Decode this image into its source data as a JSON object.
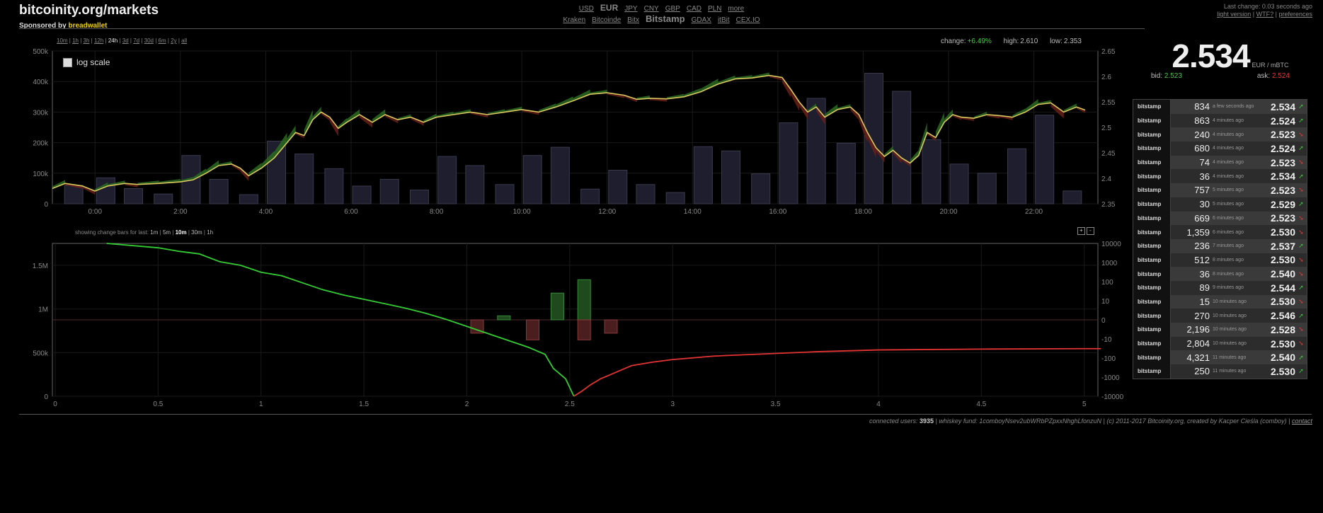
{
  "header": {
    "site_title": "bitcoinity.org/markets",
    "sponsor_prefix": "Sponsored by",
    "sponsor_link": "breadwallet"
  },
  "currencies": {
    "items": [
      "USD",
      "EUR",
      "JPY",
      "CNY",
      "GBP",
      "CAD",
      "PLN",
      "more"
    ],
    "selected": "EUR"
  },
  "exchanges": {
    "items": [
      "Kraken",
      "Bitcoinde",
      "Bitx",
      "Bitstamp",
      "GDAX",
      "itBit",
      "CEX.IO"
    ],
    "selected": "Bitstamp"
  },
  "topright": {
    "last_change": "Last change: 0.03 seconds ago",
    "light_version": "light version",
    "wtf": "WTF?",
    "preferences": "preferences",
    "sep": " | "
  },
  "ranges": {
    "items": [
      "10m",
      "1h",
      "3h",
      "12h",
      "24h",
      "3d",
      "7d",
      "30d",
      "6m",
      "2y",
      "all"
    ],
    "selected": "24h"
  },
  "stats": {
    "change_label": "change:",
    "change_value": "+6.49%",
    "high_label": "high:",
    "high_value": "2.610",
    "low_label": "low:",
    "low_value": "2.353"
  },
  "price": {
    "value": "2.534",
    "unit": "EUR / mBTC",
    "bid_label": "bid:",
    "bid_value": "2.523",
    "ask_label": "ask:",
    "ask_value": "2.524"
  },
  "log_scale_label": "log scale",
  "trades": [
    {
      "exchange": "bitstamp",
      "amount": "834",
      "ago": "a few seconds ago",
      "price": "2.534",
      "dir": "up"
    },
    {
      "exchange": "bitstamp",
      "amount": "863",
      "ago": "4 minutes ago",
      "price": "2.524",
      "dir": "up"
    },
    {
      "exchange": "bitstamp",
      "amount": "240",
      "ago": "4 minutes ago",
      "price": "2.523",
      "dir": "dn"
    },
    {
      "exchange": "bitstamp",
      "amount": "680",
      "ago": "4 minutes ago",
      "price": "2.524",
      "dir": "up"
    },
    {
      "exchange": "bitstamp",
      "amount": "74",
      "ago": "4 minutes ago",
      "price": "2.523",
      "dir": "dn"
    },
    {
      "exchange": "bitstamp",
      "amount": "36",
      "ago": "4 minutes ago",
      "price": "2.534",
      "dir": "up"
    },
    {
      "exchange": "bitstamp",
      "amount": "757",
      "ago": "5 minutes ago",
      "price": "2.523",
      "dir": "dn"
    },
    {
      "exchange": "bitstamp",
      "amount": "30",
      "ago": "5 minutes ago",
      "price": "2.529",
      "dir": "up"
    },
    {
      "exchange": "bitstamp",
      "amount": "669",
      "ago": "6 minutes ago",
      "price": "2.523",
      "dir": "dn"
    },
    {
      "exchange": "bitstamp",
      "amount": "1,359",
      "ago": "6 minutes ago",
      "price": "2.530",
      "dir": "dn"
    },
    {
      "exchange": "bitstamp",
      "amount": "236",
      "ago": "7 minutes ago",
      "price": "2.537",
      "dir": "up"
    },
    {
      "exchange": "bitstamp",
      "amount": "512",
      "ago": "8 minutes ago",
      "price": "2.530",
      "dir": "dn"
    },
    {
      "exchange": "bitstamp",
      "amount": "36",
      "ago": "8 minutes ago",
      "price": "2.540",
      "dir": "dn"
    },
    {
      "exchange": "bitstamp",
      "amount": "89",
      "ago": "9 minutes ago",
      "price": "2.544",
      "dir": "up"
    },
    {
      "exchange": "bitstamp",
      "amount": "15",
      "ago": "10 minutes ago",
      "price": "2.530",
      "dir": "dn"
    },
    {
      "exchange": "bitstamp",
      "amount": "270",
      "ago": "10 minutes ago",
      "price": "2.546",
      "dir": "up"
    },
    {
      "exchange": "bitstamp",
      "amount": "2,196",
      "ago": "10 minutes ago",
      "price": "2.528",
      "dir": "dn"
    },
    {
      "exchange": "bitstamp",
      "amount": "2,804",
      "ago": "10 minutes ago",
      "price": "2.530",
      "dir": "dn"
    },
    {
      "exchange": "bitstamp",
      "amount": "4,321",
      "ago": "11 minutes ago",
      "price": "2.540",
      "dir": "up"
    },
    {
      "exchange": "bitstamp",
      "amount": "250",
      "ago": "11 minutes ago",
      "price": "2.530",
      "dir": "up"
    }
  ],
  "change_bars": {
    "label": "showing change bars for last:",
    "items": [
      "1m",
      "5m",
      "10m",
      "30m",
      "1h"
    ],
    "selected": "10m"
  },
  "zoom": {
    "plus": "+",
    "minus": "-"
  },
  "footer": {
    "users_label": "connected users:",
    "users_value": "3935",
    "whiskey": "| whiskey fund: 1comboyNsev2ubWRbPZpxxNhghLfonzuN | (c) 2011-2017 Bitcoinity.org, created by Kacper Cieśla (comboy) |",
    "contact": "contact"
  },
  "colors": {
    "green": "#33cc33",
    "red": "#e33333",
    "price_line": "#d8c860",
    "bars": "#1e1e2e",
    "up_fill": "#2a6a20",
    "down_fill": "#6a1e18"
  },
  "chart_data": [
    {
      "type": "line",
      "x_tick_labels": [
        "0:00",
        "2:00",
        "4:00",
        "6:00",
        "8:00",
        "10:00",
        "12:00",
        "14:00",
        "16:00",
        "18:00",
        "20:00",
        "22:00"
      ],
      "volume_tick_labels": [
        "0",
        "100k",
        "200k",
        "300k",
        "400k",
        "500k"
      ],
      "price_tick_labels": [
        "2.35",
        "2.4",
        "2.45",
        "2.5",
        "2.55",
        "2.6",
        "2.65"
      ],
      "volume_ylim": [
        0,
        500000
      ],
      "price_ylim": [
        2.35,
        2.65
      ],
      "hours_range": [
        -1,
        23.5
      ],
      "volume": [
        {
          "h": -0.5,
          "v": 60000
        },
        {
          "h": 0.25,
          "v": 85000
        },
        {
          "h": 0.9,
          "v": 50000
        },
        {
          "h": 1.6,
          "v": 32000
        },
        {
          "h": 2.25,
          "v": 158000
        },
        {
          "h": 2.9,
          "v": 80000
        },
        {
          "h": 3.6,
          "v": 30000
        },
        {
          "h": 4.25,
          "v": 205000
        },
        {
          "h": 4.9,
          "v": 163000
        },
        {
          "h": 5.6,
          "v": 115000
        },
        {
          "h": 6.25,
          "v": 58000
        },
        {
          "h": 6.9,
          "v": 80000
        },
        {
          "h": 7.6,
          "v": 45000
        },
        {
          "h": 8.25,
          "v": 155000
        },
        {
          "h": 8.9,
          "v": 125000
        },
        {
          "h": 9.6,
          "v": 63000
        },
        {
          "h": 10.25,
          "v": 158000
        },
        {
          "h": 10.9,
          "v": 185000
        },
        {
          "h": 11.6,
          "v": 48000
        },
        {
          "h": 12.25,
          "v": 110000
        },
        {
          "h": 12.9,
          "v": 63000
        },
        {
          "h": 13.6,
          "v": 37000
        },
        {
          "h": 14.25,
          "v": 187000
        },
        {
          "h": 14.9,
          "v": 173000
        },
        {
          "h": 15.6,
          "v": 98000
        },
        {
          "h": 16.25,
          "v": 265000
        },
        {
          "h": 16.9,
          "v": 345000
        },
        {
          "h": 17.6,
          "v": 198000
        },
        {
          "h": 18.25,
          "v": 427000
        },
        {
          "h": 18.9,
          "v": 368000
        },
        {
          "h": 19.6,
          "v": 210000
        },
        {
          "h": 20.25,
          "v": 130000
        },
        {
          "h": 20.9,
          "v": 100000
        },
        {
          "h": 21.6,
          "v": 180000
        },
        {
          "h": 22.25,
          "v": 290000
        },
        {
          "h": 22.9,
          "v": 42000
        }
      ],
      "price": [
        {
          "h": -1,
          "p": 2.38
        },
        {
          "h": -0.7,
          "p": 2.39
        },
        {
          "h": -0.3,
          "p": 2.385
        },
        {
          "h": 0,
          "p": 2.375
        },
        {
          "h": 0.3,
          "p": 2.385
        },
        {
          "h": 0.7,
          "p": 2.39
        },
        {
          "h": 1,
          "p": 2.388
        },
        {
          "h": 1.5,
          "p": 2.39
        },
        {
          "h": 2,
          "p": 2.393
        },
        {
          "h": 2.3,
          "p": 2.397
        },
        {
          "h": 2.6,
          "p": 2.41
        },
        {
          "h": 2.9,
          "p": 2.425
        },
        {
          "h": 3.2,
          "p": 2.428
        },
        {
          "h": 3.4,
          "p": 2.42
        },
        {
          "h": 3.6,
          "p": 2.405
        },
        {
          "h": 3.9,
          "p": 2.42
        },
        {
          "h": 4.2,
          "p": 2.44
        },
        {
          "h": 4.5,
          "p": 2.47
        },
        {
          "h": 4.7,
          "p": 2.49
        },
        {
          "h": 4.9,
          "p": 2.484
        },
        {
          "h": 5.1,
          "p": 2.515
        },
        {
          "h": 5.3,
          "p": 2.53
        },
        {
          "h": 5.5,
          "p": 2.52
        },
        {
          "h": 5.7,
          "p": 2.498
        },
        {
          "h": 5.9,
          "p": 2.51
        },
        {
          "h": 6.2,
          "p": 2.525
        },
        {
          "h": 6.5,
          "p": 2.51
        },
        {
          "h": 6.8,
          "p": 2.525
        },
        {
          "h": 7.1,
          "p": 2.515
        },
        {
          "h": 7.4,
          "p": 2.52
        },
        {
          "h": 7.7,
          "p": 2.51
        },
        {
          "h": 8,
          "p": 2.52
        },
        {
          "h": 8.4,
          "p": 2.525
        },
        {
          "h": 8.8,
          "p": 2.53
        },
        {
          "h": 9.2,
          "p": 2.525
        },
        {
          "h": 9.6,
          "p": 2.53
        },
        {
          "h": 10,
          "p": 2.535
        },
        {
          "h": 10.4,
          "p": 2.53
        },
        {
          "h": 10.8,
          "p": 2.54
        },
        {
          "h": 11.2,
          "p": 2.552
        },
        {
          "h": 11.6,
          "p": 2.565
        },
        {
          "h": 12,
          "p": 2.568
        },
        {
          "h": 12.4,
          "p": 2.563
        },
        {
          "h": 12.7,
          "p": 2.555
        },
        {
          "h": 13,
          "p": 2.557
        },
        {
          "h": 13.4,
          "p": 2.556
        },
        {
          "h": 13.8,
          "p": 2.56
        },
        {
          "h": 14.2,
          "p": 2.57
        },
        {
          "h": 14.6,
          "p": 2.585
        },
        {
          "h": 15,
          "p": 2.595
        },
        {
          "h": 15.4,
          "p": 2.597
        },
        {
          "h": 15.8,
          "p": 2.602
        },
        {
          "h": 16.1,
          "p": 2.598
        },
        {
          "h": 16.3,
          "p": 2.575
        },
        {
          "h": 16.5,
          "p": 2.55
        },
        {
          "h": 16.7,
          "p": 2.53
        },
        {
          "h": 16.9,
          "p": 2.54
        },
        {
          "h": 17.1,
          "p": 2.52
        },
        {
          "h": 17.4,
          "p": 2.535
        },
        {
          "h": 17.7,
          "p": 2.54
        },
        {
          "h": 17.9,
          "p": 2.525
        },
        {
          "h": 18.1,
          "p": 2.49
        },
        {
          "h": 18.3,
          "p": 2.46
        },
        {
          "h": 18.5,
          "p": 2.443
        },
        {
          "h": 18.7,
          "p": 2.455
        },
        {
          "h": 18.9,
          "p": 2.44
        },
        {
          "h": 19.1,
          "p": 2.43
        },
        {
          "h": 19.3,
          "p": 2.445
        },
        {
          "h": 19.5,
          "p": 2.49
        },
        {
          "h": 19.7,
          "p": 2.48
        },
        {
          "h": 19.9,
          "p": 2.51
        },
        {
          "h": 20.1,
          "p": 2.525
        },
        {
          "h": 20.3,
          "p": 2.52
        },
        {
          "h": 20.6,
          "p": 2.518
        },
        {
          "h": 20.9,
          "p": 2.525
        },
        {
          "h": 21.2,
          "p": 2.523
        },
        {
          "h": 21.5,
          "p": 2.52
        },
        {
          "h": 21.8,
          "p": 2.53
        },
        {
          "h": 22.1,
          "p": 2.545
        },
        {
          "h": 22.4,
          "p": 2.548
        },
        {
          "h": 22.7,
          "p": 2.53
        },
        {
          "h": 23,
          "p": 2.54
        },
        {
          "h": 23.2,
          "p": 2.534
        }
      ]
    },
    {
      "type": "area",
      "x_tick_labels": [
        "0",
        "0.5",
        "1",
        "1.5",
        "2",
        "2.5",
        "3",
        "3.5",
        "4",
        "4.5",
        "5"
      ],
      "y_tick_labels": [
        "0",
        "500k",
        "1M",
        "1.5M"
      ],
      "right_tick_labels": [
        "10000",
        "1000",
        "100",
        "10",
        "0",
        "-10",
        "-100",
        "-1000",
        "-10000"
      ],
      "x_range": [
        0,
        5.08
      ],
      "y_range": [
        0,
        1750000
      ],
      "bids": [
        [
          0.25,
          1750000
        ],
        [
          0.4,
          1720000
        ],
        [
          0.5,
          1700000
        ],
        [
          0.6,
          1660000
        ],
        [
          0.7,
          1630000
        ],
        [
          0.8,
          1540000
        ],
        [
          0.9,
          1500000
        ],
        [
          1,
          1420000
        ],
        [
          1.1,
          1380000
        ],
        [
          1.2,
          1300000
        ],
        [
          1.3,
          1220000
        ],
        [
          1.4,
          1160000
        ],
        [
          1.5,
          1110000
        ],
        [
          1.6,
          1060000
        ],
        [
          1.7,
          1010000
        ],
        [
          1.8,
          950000
        ],
        [
          1.9,
          880000
        ],
        [
          2,
          800000
        ],
        [
          2.1,
          720000
        ],
        [
          2.2,
          640000
        ],
        [
          2.3,
          560000
        ],
        [
          2.38,
          480000
        ],
        [
          2.42,
          320000
        ],
        [
          2.48,
          200000
        ],
        [
          2.52,
          0
        ]
      ],
      "asks": [
        [
          2.52,
          0
        ],
        [
          2.56,
          60000
        ],
        [
          2.6,
          130000
        ],
        [
          2.65,
          200000
        ],
        [
          2.7,
          250000
        ],
        [
          2.75,
          300000
        ],
        [
          2.8,
          350000
        ],
        [
          2.9,
          390000
        ],
        [
          3,
          420000
        ],
        [
          3.2,
          460000
        ],
        [
          3.5,
          490000
        ],
        [
          3.7,
          510000
        ],
        [
          4,
          530000
        ],
        [
          4.5,
          540000
        ],
        [
          5,
          545000
        ],
        [
          5.08,
          545000
        ]
      ],
      "change_bars": [
        [
          2.05,
          -1
        ],
        [
          2.18,
          0.3
        ],
        [
          2.32,
          -1.5
        ],
        [
          2.44,
          2
        ],
        [
          2.57,
          3
        ],
        [
          2.57,
          -1.5
        ],
        [
          2.7,
          -1
        ]
      ]
    }
  ]
}
